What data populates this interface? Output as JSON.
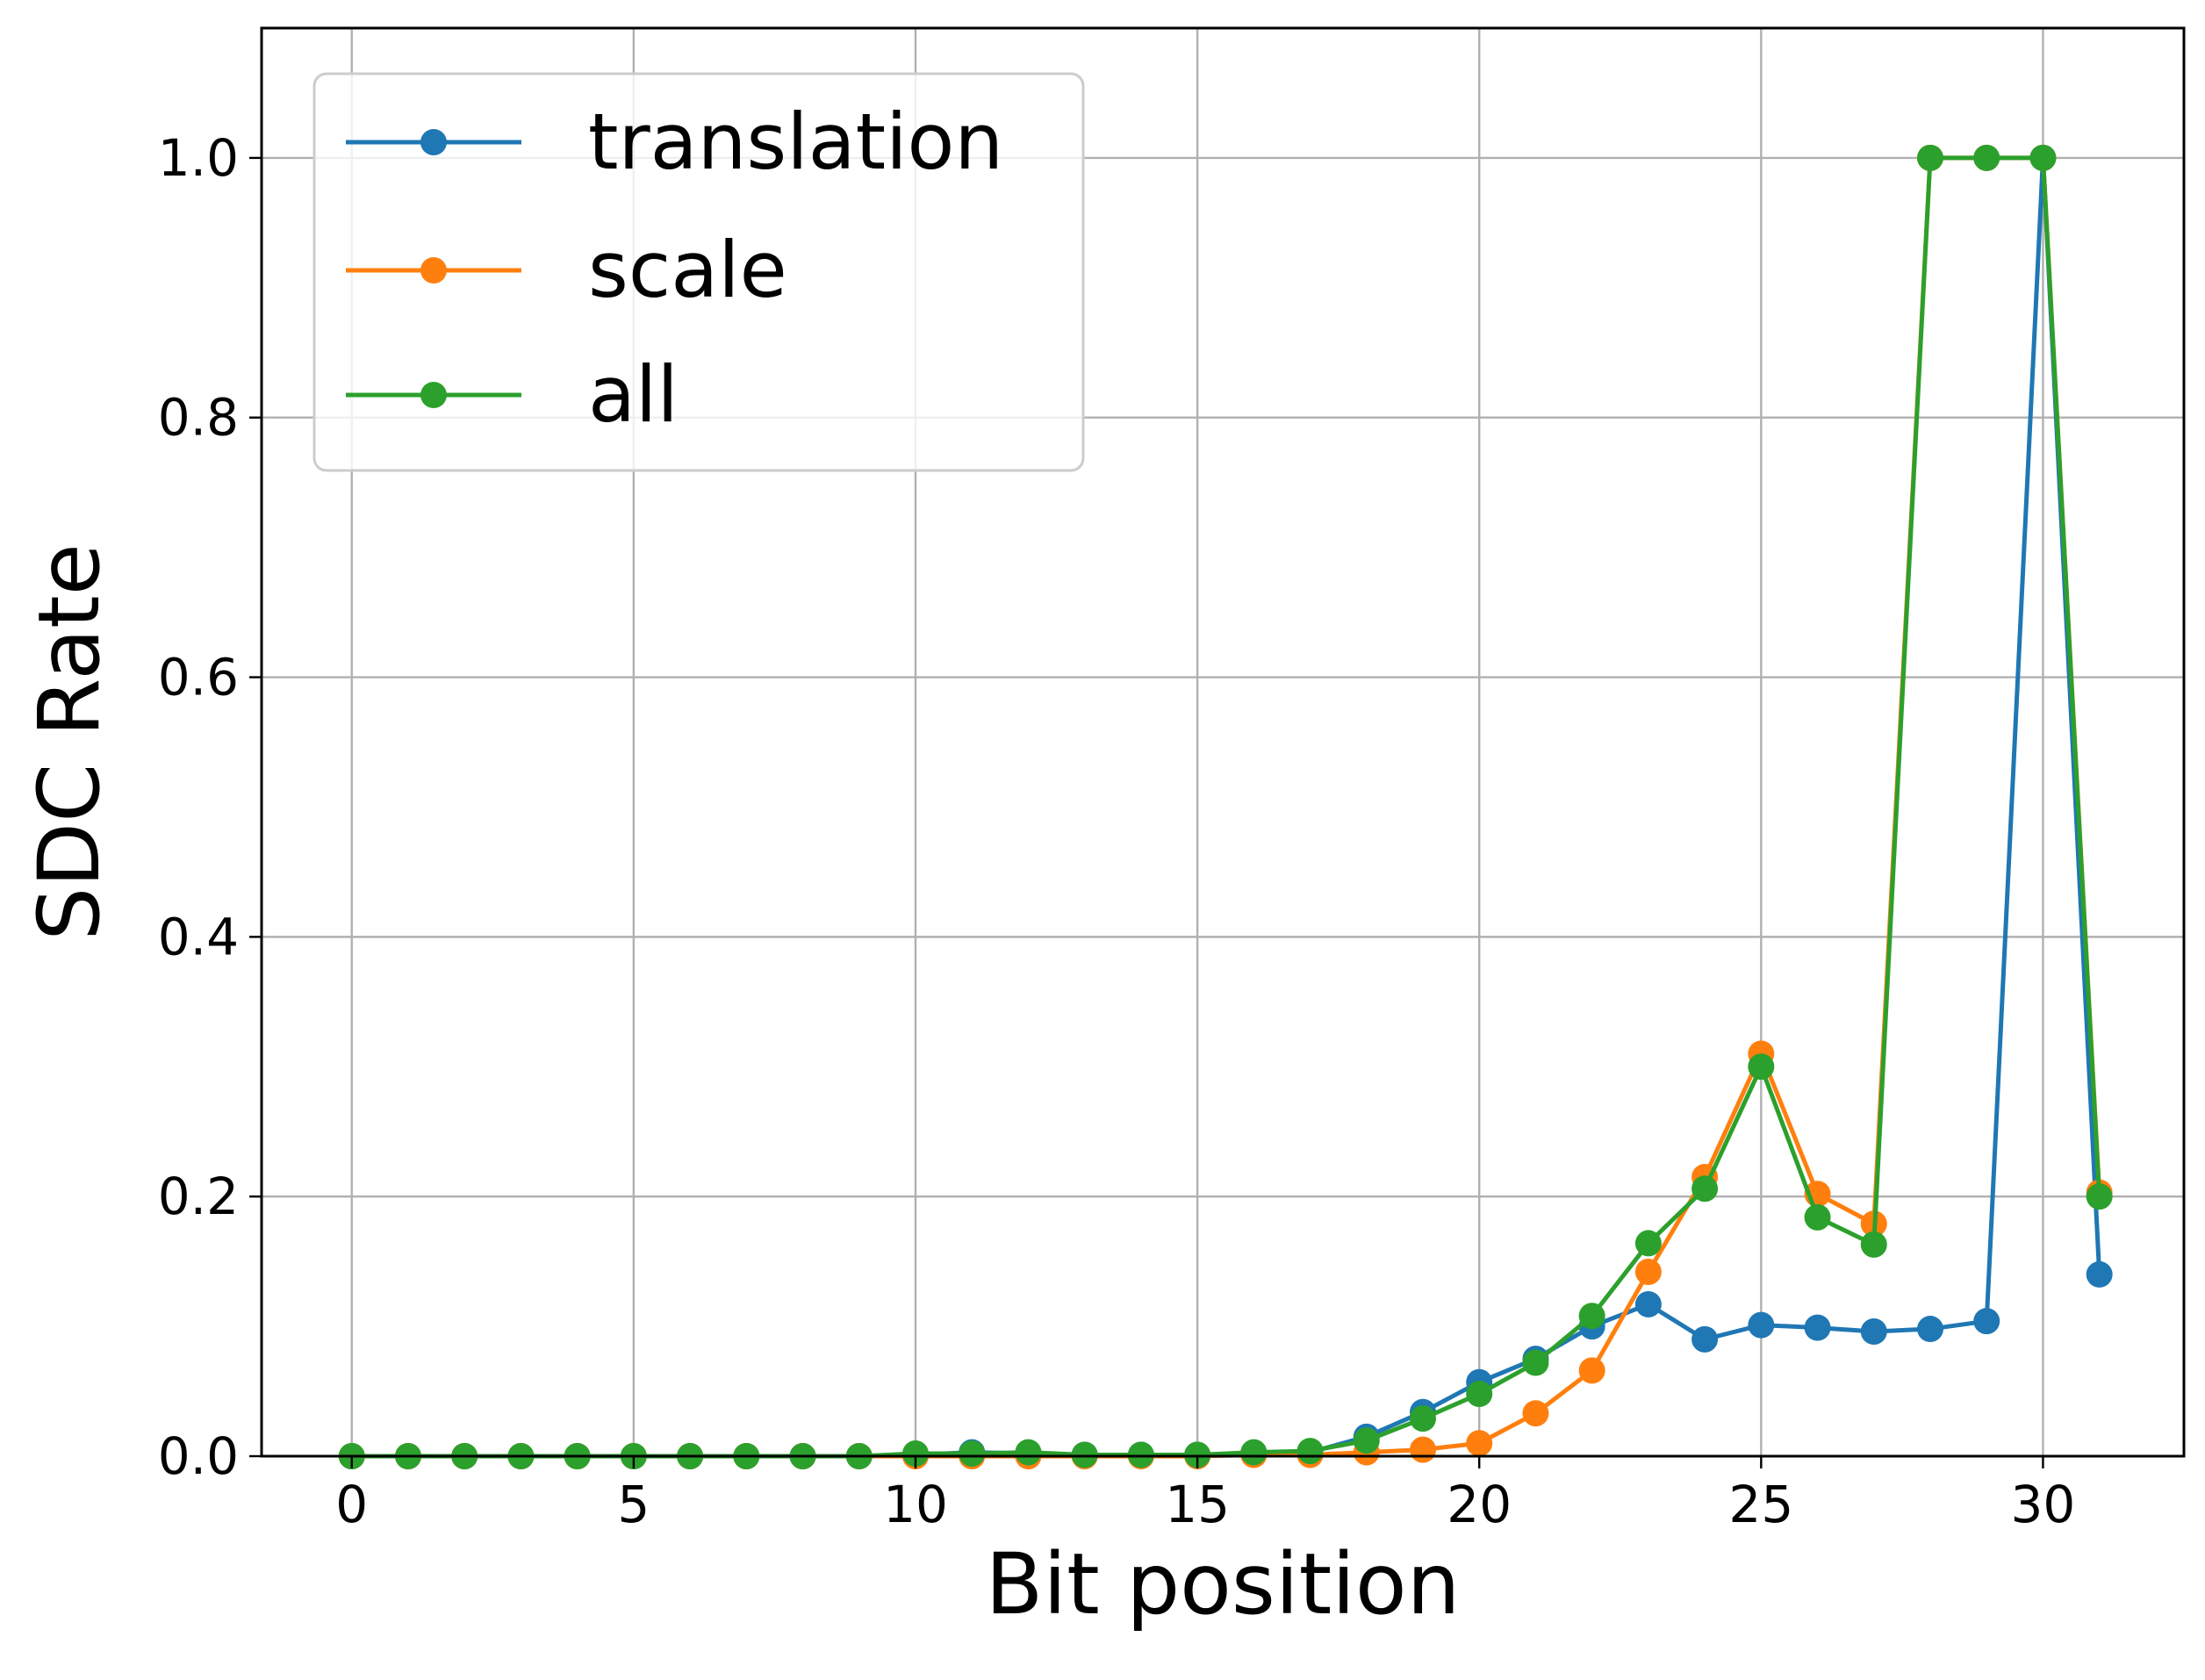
{
  "chart_data": {
    "type": "line",
    "xlabel": "Bit position",
    "ylabel": "SDC Rate",
    "xlim": [
      -1.6,
      32.5
    ],
    "ylim": [
      0,
      1.1
    ],
    "xticks": [
      0,
      5,
      10,
      15,
      20,
      25,
      30
    ],
    "yticks": [
      0.0,
      0.2,
      0.4,
      0.6,
      0.8,
      1.0
    ],
    "xtick_labels": [
      "0",
      "5",
      "10",
      "15",
      "20",
      "25",
      "30"
    ],
    "ytick_labels": [
      "0.0",
      "0.2",
      "0.4",
      "0.6",
      "0.8",
      "1.0"
    ],
    "grid": true,
    "legend_position": "top-left",
    "x": [
      0,
      1,
      2,
      3,
      4,
      5,
      6,
      7,
      8,
      9,
      10,
      11,
      12,
      13,
      14,
      15,
      16,
      17,
      18,
      19,
      20,
      21,
      22,
      23,
      24,
      25,
      26,
      27,
      28,
      29,
      30,
      31
    ],
    "series": [
      {
        "name": "translation",
        "color": "#1f77b4",
        "values": [
          0.0,
          0.0,
          0.0,
          0.0,
          0.0,
          0.0,
          0.0,
          0.0,
          0.0,
          0.0,
          0.001,
          0.003,
          0.002,
          0.001,
          0.001,
          0.001,
          0.002,
          0.003,
          0.015,
          0.034,
          0.057,
          0.075,
          0.1,
          0.117,
          0.09,
          0.101,
          0.099,
          0.096,
          0.098,
          0.104,
          1.0,
          0.14
        ]
      },
      {
        "name": "scale",
        "color": "#ff7f0e",
        "values": [
          0.0,
          0.0,
          0.0,
          0.0,
          0.0,
          0.0,
          0.0,
          0.0,
          0.0,
          0.0,
          0.0,
          0.0,
          0.0,
          0.0,
          0.0,
          0.0,
          0.001,
          0.001,
          0.003,
          0.005,
          0.01,
          0.033,
          0.066,
          0.142,
          0.215,
          0.31,
          0.202,
          0.179,
          1.0,
          1.0,
          1.0,
          0.203
        ]
      },
      {
        "name": "all",
        "color": "#2ca02c",
        "values": [
          0.0,
          0.0,
          0.0,
          0.0,
          0.0,
          0.0,
          0.0,
          0.0,
          0.0,
          0.0,
          0.002,
          0.002,
          0.003,
          0.001,
          0.001,
          0.001,
          0.003,
          0.004,
          0.012,
          0.029,
          0.048,
          0.072,
          0.108,
          0.164,
          0.206,
          0.3,
          0.184,
          0.163,
          1.0,
          1.0,
          1.0,
          0.2
        ]
      }
    ]
  }
}
